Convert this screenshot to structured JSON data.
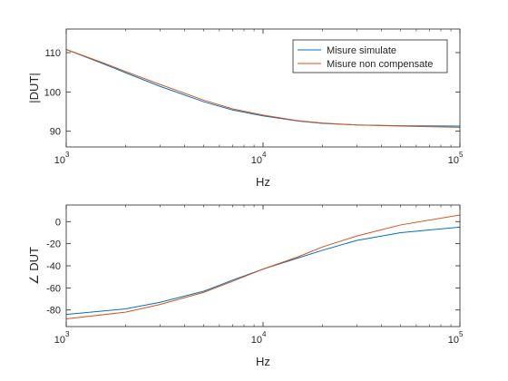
{
  "chart_data": [
    {
      "type": "line",
      "x_scale": "log",
      "xlim": [
        1000,
        100000
      ],
      "ylim": [
        86,
        116
      ],
      "xlabel": "Hz",
      "ylabel": "|DUT|",
      "xticks": [
        {
          "base": "10",
          "exp": "3",
          "value": 1000
        },
        {
          "base": "10",
          "exp": "4",
          "value": 10000
        },
        {
          "base": "10",
          "exp": "5",
          "value": 100000
        }
      ],
      "yticks": [
        {
          "label": "90",
          "value": 90
        },
        {
          "label": "100",
          "value": 100
        },
        {
          "label": "110",
          "value": 110
        }
      ],
      "legend": {
        "position": "top-right"
      },
      "series": [
        {
          "name": "Misure simulate",
          "color": "#0072BD",
          "x": [
            1000,
            1500,
            2000,
            3000,
            5000,
            7000,
            10000,
            15000,
            20000,
            30000,
            50000,
            100000
          ],
          "y": [
            110.8,
            107.4,
            104.9,
            101.4,
            97.5,
            95.4,
            93.9,
            92.6,
            92.0,
            91.6,
            91.4,
            91.3
          ]
        },
        {
          "name": "Misure non compensate",
          "color": "#D95319",
          "x": [
            1000,
            1500,
            2000,
            3000,
            5000,
            7000,
            10000,
            15000,
            20000,
            30000,
            50000,
            100000
          ],
          "y": [
            110.8,
            107.6,
            105.2,
            101.9,
            97.9,
            95.7,
            94.1,
            92.7,
            92.1,
            91.6,
            91.3,
            91.0
          ]
        }
      ]
    },
    {
      "type": "line",
      "x_scale": "log",
      "xlim": [
        1000,
        100000
      ],
      "ylim": [
        -95,
        15
      ],
      "xlabel": "Hz",
      "ylabel": "∠ DUT",
      "xticks": [
        {
          "base": "10",
          "exp": "3",
          "value": 1000
        },
        {
          "base": "10",
          "exp": "4",
          "value": 10000
        },
        {
          "base": "10",
          "exp": "5",
          "value": 100000
        }
      ],
      "yticks": [
        {
          "label": "-80",
          "value": -80
        },
        {
          "label": "-60",
          "value": -60
        },
        {
          "label": "-40",
          "value": -40
        },
        {
          "label": "-20",
          "value": -20
        },
        {
          "label": "0",
          "value": 0
        }
      ],
      "series": [
        {
          "color": "#0072BD",
          "x": [
            1000,
            2000,
            3000,
            5000,
            7000,
            10000,
            15000,
            20000,
            30000,
            50000,
            100000
          ],
          "y": [
            -84,
            -79,
            -73,
            -63,
            -53,
            -43,
            -33,
            -26,
            -17,
            -10,
            -5
          ]
        },
        {
          "color": "#D95319",
          "x": [
            1000,
            2000,
            3000,
            5000,
            7000,
            10000,
            15000,
            20000,
            30000,
            50000,
            100000
          ],
          "y": [
            -88,
            -82,
            -75,
            -64,
            -54,
            -43,
            -32,
            -23,
            -13,
            -3,
            6
          ]
        }
      ]
    }
  ]
}
